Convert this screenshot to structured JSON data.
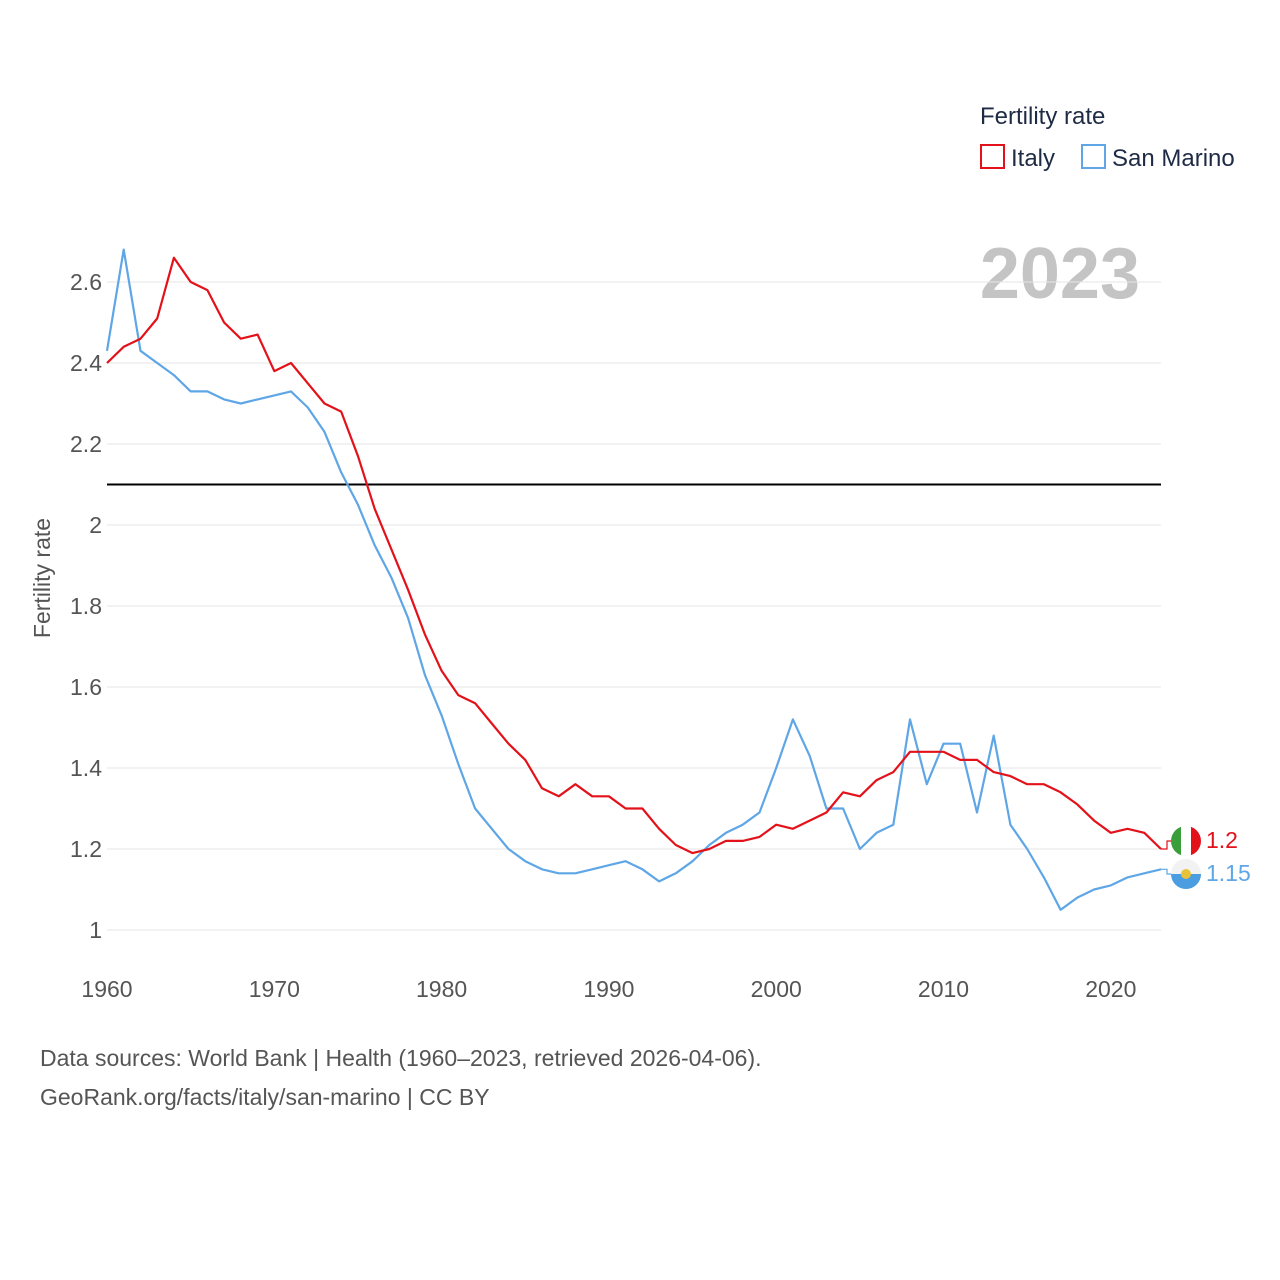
{
  "chart_data": {
    "type": "line",
    "legend_title": "Fertility rate",
    "ylabel": "Fertility rate",
    "year_label": "2023",
    "ylim": [
      0.95,
      2.75
    ],
    "xlim": [
      1960,
      2023
    ],
    "y_ticks": [
      {
        "value": 1,
        "label": "1"
      },
      {
        "value": 1.2,
        "label": "1.2"
      },
      {
        "value": 1.4,
        "label": "1.4"
      },
      {
        "value": 1.6,
        "label": "1.6"
      },
      {
        "value": 1.8,
        "label": "1.8"
      },
      {
        "value": 2,
        "label": "2"
      },
      {
        "value": 2.2,
        "label": "2.2"
      },
      {
        "value": 2.4,
        "label": "2.4"
      },
      {
        "value": 2.6,
        "label": "2.6"
      }
    ],
    "x_ticks": [
      {
        "value": 1960,
        "label": "1960"
      },
      {
        "value": 1970,
        "label": "1970"
      },
      {
        "value": 1980,
        "label": "1980"
      },
      {
        "value": 1990,
        "label": "1990"
      },
      {
        "value": 2000,
        "label": "2000"
      },
      {
        "value": 2010,
        "label": "2010"
      },
      {
        "value": 2020,
        "label": "2020"
      }
    ],
    "reference_line": {
      "value": 2.1,
      "color": "#000000"
    },
    "x": [
      1960,
      1961,
      1962,
      1963,
      1964,
      1965,
      1966,
      1967,
      1968,
      1969,
      1970,
      1971,
      1972,
      1973,
      1974,
      1975,
      1976,
      1977,
      1978,
      1979,
      1980,
      1981,
      1982,
      1983,
      1984,
      1985,
      1986,
      1987,
      1988,
      1989,
      1990,
      1991,
      1992,
      1993,
      1994,
      1995,
      1996,
      1997,
      1998,
      1999,
      2000,
      2001,
      2002,
      2003,
      2004,
      2005,
      2006,
      2007,
      2008,
      2009,
      2010,
      2011,
      2012,
      2013,
      2014,
      2015,
      2016,
      2017,
      2018,
      2019,
      2020,
      2021,
      2022,
      2023
    ],
    "series": [
      {
        "name": "Italy",
        "color": "#e3121a",
        "end_label": "1.2",
        "values": [
          2.4,
          2.44,
          2.46,
          2.51,
          2.66,
          2.6,
          2.58,
          2.5,
          2.46,
          2.47,
          2.38,
          2.4,
          2.35,
          2.3,
          2.28,
          2.17,
          2.04,
          1.94,
          1.84,
          1.73,
          1.64,
          1.58,
          1.56,
          1.51,
          1.46,
          1.42,
          1.35,
          1.33,
          1.36,
          1.33,
          1.33,
          1.3,
          1.3,
          1.25,
          1.21,
          1.19,
          1.2,
          1.22,
          1.22,
          1.23,
          1.26,
          1.25,
          1.27,
          1.29,
          1.34,
          1.33,
          1.37,
          1.39,
          1.44,
          1.44,
          1.44,
          1.42,
          1.42,
          1.39,
          1.38,
          1.36,
          1.36,
          1.34,
          1.31,
          1.27,
          1.24,
          1.25,
          1.24,
          1.2
        ]
      },
      {
        "name": "San Marino",
        "color": "#5ea6e6",
        "end_label": "1.15",
        "values": [
          2.43,
          2.68,
          2.43,
          2.4,
          2.37,
          2.33,
          2.33,
          2.31,
          2.3,
          2.31,
          2.32,
          2.33,
          2.29,
          2.23,
          2.13,
          2.05,
          1.95,
          1.87,
          1.77,
          1.63,
          1.53,
          1.41,
          1.3,
          1.25,
          1.2,
          1.17,
          1.15,
          1.14,
          1.14,
          1.15,
          1.16,
          1.17,
          1.15,
          1.12,
          1.14,
          1.17,
          1.21,
          1.24,
          1.26,
          1.29,
          1.4,
          1.52,
          1.43,
          1.3,
          1.3,
          1.2,
          1.24,
          1.26,
          1.52,
          1.36,
          1.46,
          1.46,
          1.29,
          1.48,
          1.26,
          1.2,
          1.13,
          1.05,
          1.08,
          1.1,
          1.11,
          1.13,
          1.14,
          1.15
        ]
      }
    ]
  },
  "footer": {
    "source_line": "Data sources: World Bank | Health (1960–2023, retrieved 2026-04-06).",
    "url_line": "GeoRank.org/facts/italy/san-marino | CC BY"
  }
}
